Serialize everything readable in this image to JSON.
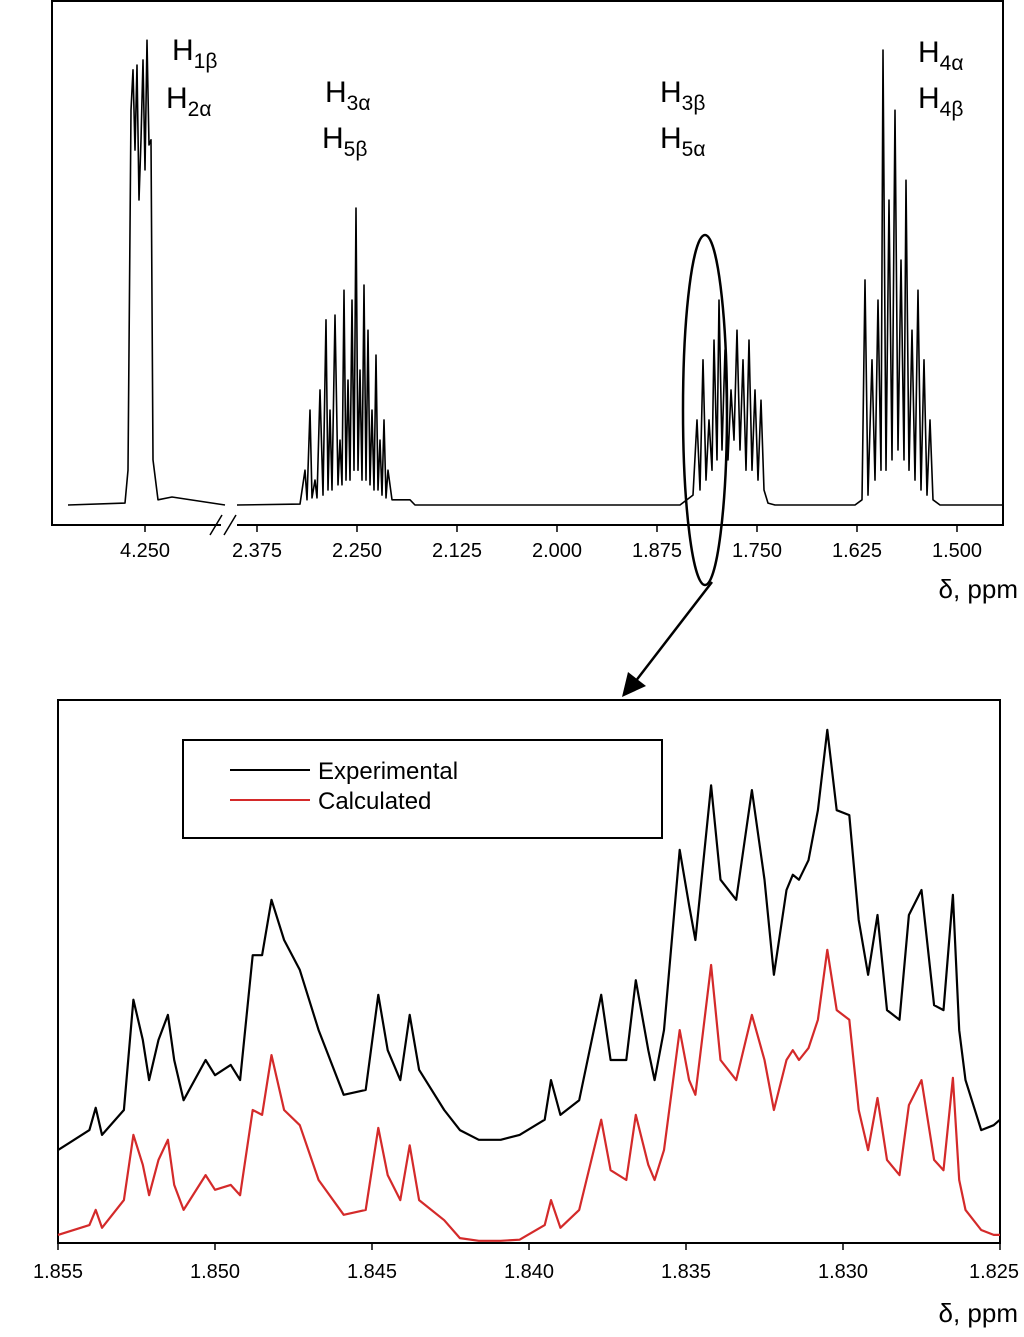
{
  "chart_data": [
    {
      "type": "line",
      "annotations": [
        {
          "text": "H",
          "sub": "1β"
        },
        {
          "text": "H",
          "sub": "2α"
        }
      ],
      "xlim": [
        4.35,
        4.15
      ],
      "ylim": [
        0,
        100
      ],
      "xticks": [
        {
          "value": 4.25,
          "label": "4.250"
        }
      ],
      "x": [
        4.3463,
        4.275,
        4.2713,
        4.2675,
        4.265,
        4.2625,
        4.26,
        4.2575,
        4.255,
        4.2525,
        4.25,
        4.2475,
        4.245,
        4.2425,
        4.24,
        4.2338,
        4.2163,
        4.15
      ],
      "series": [
        {
          "color": "#000000",
          "values": [
            0,
            0.4,
            7.4,
            84.0,
            92.6,
            75.5,
            93.6,
            64.9,
            77.7,
            94.7,
            71.3,
            98.9,
            76.6,
            77.7,
            9.6,
            1.1,
            1.7,
            0
          ]
        }
      ]
    },
    {
      "type": "line",
      "xlabel": "δ, ppm",
      "annotations": [
        {
          "text": "H",
          "sub": "3α"
        },
        {
          "text": "H",
          "sub": "5β"
        },
        {
          "text": "H",
          "sub": "3β"
        },
        {
          "text": "H",
          "sub": "5α"
        },
        {
          "text": "H",
          "sub": "4α"
        },
        {
          "text": "H",
          "sub": "4β"
        }
      ],
      "xlim": [
        2.4,
        1.44
      ],
      "ylim": [
        0,
        100
      ],
      "xticks": [
        2.375,
        {
          "value": 2.25,
          "label": "2.250"
        },
        2.125,
        {
          "value": 2.0,
          "label": "2.000"
        },
        1.875,
        {
          "value": 1.75,
          "label": "1.750"
        },
        1.625,
        {
          "value": 1.5,
          "label": "1.500"
        }
      ],
      "x": [
        2.4,
        2.3213,
        2.315,
        2.3125,
        2.3088,
        2.3063,
        2.3025,
        2.3,
        2.2963,
        2.2925,
        2.2888,
        2.2863,
        2.2838,
        2.2813,
        2.2775,
        2.2738,
        2.2713,
        2.2688,
        2.2663,
        2.2638,
        2.2613,
        2.2588,
        2.2563,
        2.2538,
        2.2513,
        2.2488,
        2.2463,
        2.2438,
        2.2413,
        2.2388,
        2.2363,
        2.2338,
        2.2313,
        2.2288,
        2.2263,
        2.2238,
        2.2213,
        2.2188,
        2.2163,
        2.2138,
        2.2113,
        2.2063,
        2.1838,
        2.1775,
        1.8463,
        1.83,
        1.825,
        1.8213,
        1.8175,
        1.8138,
        1.81,
        1.8063,
        1.8038,
        1.8,
        1.7975,
        1.7938,
        1.79,
        1.7863,
        1.7825,
        1.7788,
        1.775,
        1.7713,
        1.7675,
        1.7638,
        1.76,
        1.7563,
        1.7525,
        1.7488,
        1.745,
        1.7413,
        1.7363,
        1.7275,
        1.6275,
        1.6188,
        1.615,
        1.6113,
        1.6063,
        1.6025,
        1.5988,
        1.595,
        1.5925,
        1.5888,
        1.585,
        1.5813,
        1.5775,
        1.5738,
        1.57,
        1.5663,
        1.5638,
        1.56,
        1.5563,
        1.5525,
        1.5488,
        1.545,
        1.5413,
        1.5375,
        1.5338,
        1.53,
        1.5213,
        1.4425
      ],
      "series": [
        {
          "color": "#000000",
          "values": [
            0,
            0.2,
            7.4,
            1.1,
            20.2,
            1.5,
            5.3,
            1.5,
            24.5,
            2.1,
            39.4,
            3.2,
            20.2,
            3.2,
            40.4,
            4.3,
            13.8,
            4.3,
            45.7,
            5.3,
            26.6,
            5.3,
            43.6,
            7.4,
            63.2,
            7.4,
            28.7,
            5.3,
            46.8,
            5.3,
            37.2,
            4.3,
            20.2,
            3.2,
            31.9,
            3.2,
            13.8,
            2.1,
            18.1,
            1.5,
            7.4,
            1.1,
            1.1,
            0,
            0,
            2.1,
            18.1,
            3.2,
            30.9,
            5.3,
            18.1,
            7.4,
            35.1,
            9.6,
            43.6,
            11.7,
            33.0,
            9.6,
            24.5,
            13.8,
            37.2,
            11.7,
            30.9,
            7.4,
            35.1,
            7.4,
            24.5,
            5.3,
            22.3,
            3.2,
            0.4,
            0,
            0,
            1.1,
            47.9,
            2.1,
            30.9,
            5.3,
            43.6,
            7.4,
            96.8,
            7.4,
            64.9,
            9.6,
            84.0,
            11.7,
            52.1,
            9.6,
            69.1,
            7.4,
            37.2,
            5.3,
            45.7,
            3.2,
            30.9,
            2.1,
            18.1,
            1.1,
            0,
            0
          ]
        }
      ]
    },
    {
      "type": "line",
      "xlabel": "δ, ppm",
      "xlim": [
        1.855,
        1.825
      ],
      "ylim": [
        0,
        100
      ],
      "xticks": [
        1.855,
        {
          "value": 1.85,
          "label": "1.850"
        },
        1.845,
        {
          "value": 1.84,
          "label": "1.840"
        },
        1.835,
        {
          "value": 1.83,
          "label": "1.830"
        },
        1.825
      ],
      "legend": "top-left",
      "x": [
        1.855,
        1.854,
        1.8538,
        1.8536,
        1.8529,
        1.8526,
        1.8523,
        1.8521,
        1.8518,
        1.8515,
        1.8513,
        1.851,
        1.8503,
        1.85,
        1.8495,
        1.8492,
        1.8488,
        1.8485,
        1.8482,
        1.8478,
        1.8473,
        1.8467,
        1.8459,
        1.8452,
        1.8448,
        1.8445,
        1.8441,
        1.8438,
        1.8435,
        1.8427,
        1.8422,
        1.8416,
        1.8409,
        1.8403,
        1.8395,
        1.8393,
        1.839,
        1.8384,
        1.8377,
        1.8374,
        1.8369,
        1.8366,
        1.8362,
        1.836,
        1.8357,
        1.8352,
        1.8349,
        1.8347,
        1.8342,
        1.8339,
        1.8334,
        1.8329,
        1.8325,
        1.8322,
        1.8318,
        1.8316,
        1.8314,
        1.8311,
        1.8308,
        1.8305,
        1.8302,
        1.8298,
        1.8295,
        1.8292,
        1.8289,
        1.8286,
        1.8282,
        1.8279,
        1.8275,
        1.8271,
        1.8268,
        1.8265,
        1.8263,
        1.8261,
        1.8256,
        1.8252,
        1.825
      ],
      "series": [
        {
          "name": "Experimental",
          "color": "#000000",
          "values": [
            17.1,
            20.8,
            24.9,
            19.9,
            24.5,
            44.8,
            37.4,
            30.0,
            37.4,
            42.0,
            33.7,
            26.3,
            33.7,
            30.9,
            32.8,
            30.0,
            53.0,
            53.0,
            63.2,
            55.8,
            50.3,
            39.2,
            27.3,
            28.2,
            45.7,
            35.5,
            30.0,
            42.0,
            31.9,
            24.5,
            20.8,
            19.0,
            19.0,
            19.9,
            22.7,
            30.0,
            23.6,
            26.3,
            45.7,
            33.7,
            33.7,
            48.4,
            35.5,
            30.0,
            39.2,
            72.4,
            62.2,
            55.8,
            84.3,
            66.9,
            63.2,
            83.4,
            66.9,
            49.4,
            65.0,
            67.8,
            66.9,
            70.5,
            79.7,
            94.5,
            79.7,
            78.8,
            59.5,
            49.4,
            60.4,
            42.9,
            41.1,
            60.4,
            65.0,
            43.8,
            42.9,
            64.1,
            39.2,
            30.0,
            20.8,
            21.7,
            22.7
          ]
        },
        {
          "name": "Calculated",
          "color": "#d42a2a",
          "values": [
            1.5,
            3.3,
            6.1,
            2.8,
            7.9,
            19.9,
            14.4,
            8.8,
            15.3,
            19.0,
            10.7,
            6.1,
            12.5,
            9.8,
            10.7,
            8.8,
            24.5,
            23.6,
            34.6,
            24.5,
            21.7,
            11.6,
            5.2,
            6.1,
            21.2,
            12.5,
            7.9,
            18.0,
            7.9,
            4.2,
            0.9,
            0.4,
            0.4,
            0.6,
            3.3,
            7.9,
            2.8,
            6.1,
            22.7,
            13.4,
            11.6,
            23.6,
            14.4,
            11.6,
            17.1,
            39.2,
            30.0,
            27.3,
            51.2,
            33.7,
            30.0,
            42.0,
            33.7,
            24.5,
            33.7,
            35.5,
            33.7,
            35.9,
            41.1,
            54.0,
            42.9,
            41.1,
            24.5,
            17.1,
            26.7,
            15.3,
            12.5,
            25.4,
            30.0,
            15.3,
            13.4,
            30.4,
            11.6,
            6.1,
            2.4,
            1.5,
            1.5
          ]
        }
      ]
    }
  ]
}
